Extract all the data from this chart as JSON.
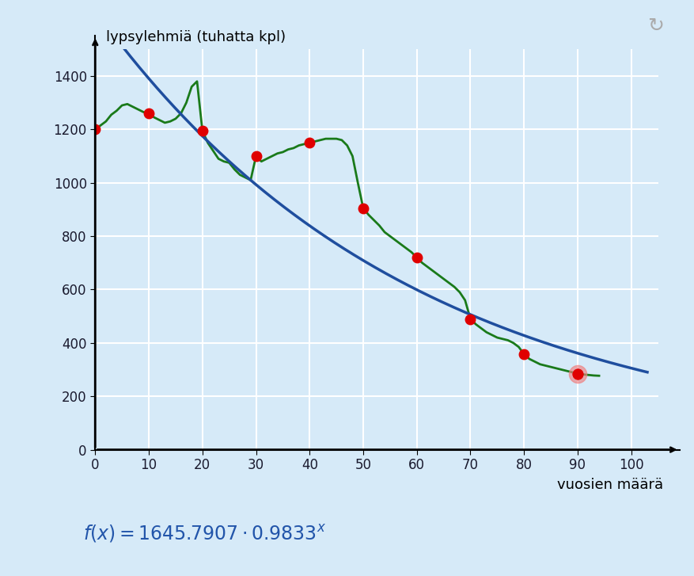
{
  "title_y": "lypsylehmiä (tuhatta kpl)",
  "title_x": "vuosien määrä",
  "xlim": [
    0,
    105
  ],
  "ylim": [
    0,
    1500
  ],
  "xticks": [
    0,
    10,
    20,
    30,
    40,
    50,
    60,
    70,
    80,
    90,
    100
  ],
  "yticks": [
    0,
    200,
    400,
    600,
    800,
    1000,
    1200,
    1400
  ],
  "bg_color": "#d6eaf8",
  "grid_color": "#ffffff",
  "curve_color": "#1a7a1a",
  "fit_color": "#1f4e9e",
  "red_dot_color": "#e00000",
  "highlight_dot_color": "#f08080",
  "a": 1645.7907,
  "b": 0.9833,
  "red_dots": [
    [
      0,
      1200
    ],
    [
      10,
      1260
    ],
    [
      20,
      1195
    ],
    [
      30,
      1100
    ],
    [
      40,
      1150
    ],
    [
      50,
      905
    ],
    [
      60,
      720
    ],
    [
      70,
      490
    ],
    [
      80,
      358
    ],
    [
      90,
      285
    ]
  ],
  "highlight_dot": [
    90,
    285
  ],
  "green_curve_x": [
    0,
    2,
    3,
    4,
    5,
    6,
    7,
    8,
    9,
    10,
    11,
    12,
    13,
    14,
    15,
    16,
    17,
    18,
    19,
    20,
    21,
    22,
    23,
    24,
    25,
    26,
    27,
    28,
    29,
    30,
    31,
    32,
    33,
    34,
    35,
    36,
    37,
    38,
    39,
    40,
    41,
    42,
    43,
    44,
    45,
    46,
    47,
    48,
    49,
    50,
    51,
    52,
    53,
    54,
    55,
    56,
    57,
    58,
    59,
    60,
    61,
    62,
    63,
    64,
    65,
    66,
    67,
    68,
    69,
    70,
    71,
    72,
    73,
    74,
    75,
    76,
    77,
    78,
    79,
    80,
    81,
    82,
    83,
    84,
    85,
    86,
    87,
    88,
    89,
    90,
    91,
    92,
    93,
    94
  ],
  "green_curve_y": [
    1200,
    1230,
    1255,
    1270,
    1290,
    1295,
    1285,
    1275,
    1265,
    1260,
    1245,
    1235,
    1225,
    1230,
    1240,
    1260,
    1300,
    1360,
    1380,
    1195,
    1150,
    1120,
    1090,
    1080,
    1075,
    1050,
    1030,
    1020,
    1010,
    1100,
    1080,
    1090,
    1100,
    1110,
    1115,
    1125,
    1130,
    1140,
    1145,
    1150,
    1155,
    1160,
    1165,
    1165,
    1165,
    1160,
    1140,
    1100,
    1000,
    905,
    880,
    860,
    840,
    815,
    800,
    785,
    770,
    755,
    740,
    720,
    700,
    685,
    670,
    655,
    640,
    625,
    610,
    590,
    560,
    490,
    470,
    455,
    440,
    430,
    420,
    415,
    410,
    400,
    385,
    358,
    340,
    330,
    320,
    315,
    310,
    305,
    300,
    295,
    290,
    285,
    282,
    280,
    278,
    277
  ]
}
